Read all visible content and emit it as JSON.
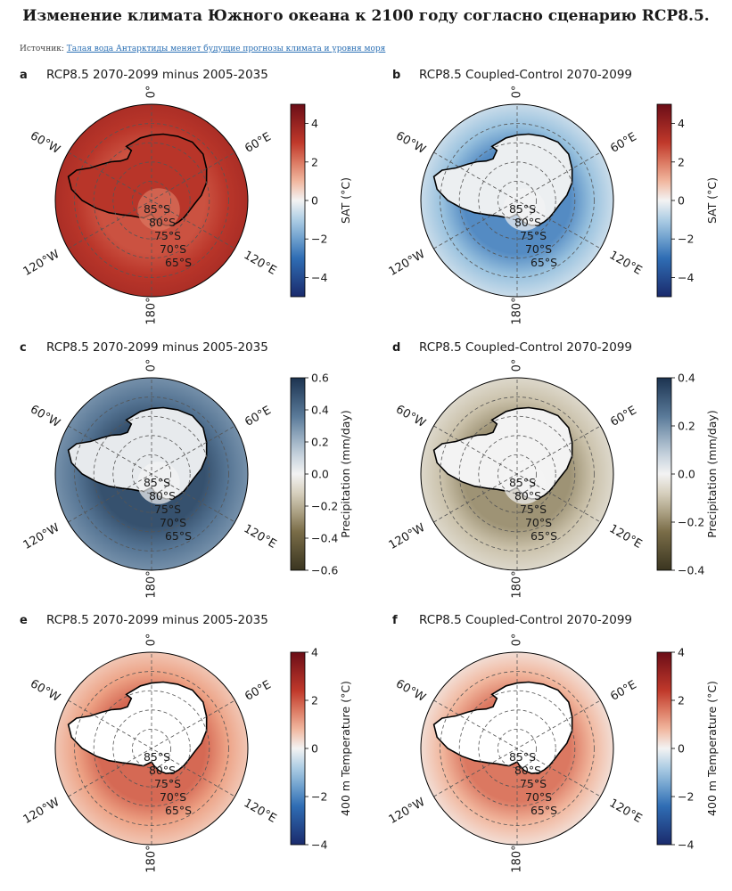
{
  "header": {
    "title": "Изменение климата Южного океана к 2100 году согласно сценарию RCP8.5.",
    "source_label": "Источник:",
    "source_link": "Талая вода Антарктиды меняет будущие прогнозы климата и уровня моря"
  },
  "colors": {
    "warm": "#a8301f",
    "cool": "#2a60a8",
    "neutral": "#f3f3f3",
    "precip_wet": "#2c4a6e",
    "precip_dry": "#4a4128"
  },
  "chart_data": [
    {
      "type": "heatmap",
      "projection": "south-polar-stereographic",
      "panel": "a",
      "title": "RCP8.5 2070-2099 minus 2005-2035",
      "variable": "SAT (°C)",
      "colormap": "RdBu_r",
      "vlim": [
        -5,
        5
      ],
      "colorbar_ticks": [
        "4",
        "2",
        "0",
        "−2",
        "−4"
      ],
      "colorbar_values": [
        4,
        2,
        0,
        -2,
        -4
      ],
      "field": {
        "ocean": 3.5,
        "land": 3.2,
        "interior": 2.0,
        "coast": 2.6
      },
      "lon_labels": [
        "0°",
        "60°E",
        "120°E",
        "180°",
        "120°W",
        "60°W"
      ],
      "lat_labels": [
        "85°S",
        "80°S",
        "75°S",
        "70°S",
        "65°S"
      ]
    },
    {
      "type": "heatmap",
      "projection": "south-polar-stereographic",
      "panel": "b",
      "title": "RCP8.5 Coupled-Control 2070-2099",
      "variable": "SAT (°C)",
      "colormap": "RdBu_r",
      "vlim": [
        -5,
        5
      ],
      "colorbar_ticks": [
        "4",
        "2",
        "0",
        "−2",
        "−4"
      ],
      "colorbar_values": [
        4,
        2,
        0,
        -2,
        -4
      ],
      "field": {
        "ocean": -0.6,
        "land": -0.1,
        "interior": 0.0,
        "coast": -2.4
      },
      "lon_labels": [
        "0°",
        "60°E",
        "120°E",
        "180°",
        "120°W",
        "60°W"
      ],
      "lat_labels": [
        "85°S",
        "80°S",
        "75°S",
        "70°S",
        "65°S"
      ]
    },
    {
      "type": "heatmap",
      "projection": "south-polar-stereographic",
      "panel": "c",
      "title": "RCP8.5 2070-2099 minus 2005-2035",
      "variable": "Precipitation (mm/day)",
      "colormap": "BrBG-like",
      "vlim": [
        -0.6,
        0.6
      ],
      "colorbar_ticks": [
        "0.6",
        "0.4",
        "0.2",
        "0.0",
        "−0.2",
        "−0.4",
        "−0.6"
      ],
      "colorbar_values": [
        0.6,
        0.4,
        0.2,
        0.0,
        -0.2,
        -0.4,
        -0.6
      ],
      "field": {
        "ocean": 0.3,
        "land": 0.03,
        "interior": 0.0,
        "coast": 0.5
      },
      "lon_labels": [
        "0°",
        "60°E",
        "120°E",
        "180°",
        "120°W",
        "60°W"
      ],
      "lat_labels": [
        "85°S",
        "80°S",
        "75°S",
        "70°S",
        "65°S"
      ]
    },
    {
      "type": "heatmap",
      "projection": "south-polar-stereographic",
      "panel": "d",
      "title": "RCP8.5 Coupled-Control 2070-2099",
      "variable": "Precipitation (mm/day)",
      "colormap": "BrBG-like",
      "vlim": [
        -0.4,
        0.4
      ],
      "colorbar_ticks": [
        "0.4",
        "0.2",
        "0.0",
        "−0.2",
        "−0.4"
      ],
      "colorbar_values": [
        0.4,
        0.2,
        0.0,
        -0.2,
        -0.4
      ],
      "field": {
        "ocean": -0.06,
        "land": 0.0,
        "interior": 0.0,
        "coast": -0.18
      },
      "lon_labels": [
        "0°",
        "60°E",
        "120°E",
        "180°",
        "120°W",
        "60°W"
      ],
      "lat_labels": [
        "85°S",
        "80°S",
        "75°S",
        "70°S",
        "65°S"
      ]
    },
    {
      "type": "heatmap",
      "projection": "south-polar-stereographic",
      "panel": "e",
      "title": "RCP8.5 2070-2099 minus 2005-2035",
      "variable": "400 m Temperature (°C)",
      "colormap": "RdBu_r",
      "vlim": [
        -4,
        4
      ],
      "colorbar_ticks": [
        "4",
        "2",
        "0",
        "−2",
        "−4"
      ],
      "colorbar_values": [
        4,
        2,
        0,
        -2,
        -4
      ],
      "field": {
        "ocean": 0.6,
        "land": null,
        "interior": null,
        "coast": 1.8
      },
      "lon_labels": [
        "0°",
        "60°E",
        "120°E",
        "180°",
        "120°W",
        "60°W"
      ],
      "lat_labels": [
        "85°S",
        "80°S",
        "75°S",
        "70°S",
        "65°S"
      ]
    },
    {
      "type": "heatmap",
      "projection": "south-polar-stereographic",
      "panel": "f",
      "title": "RCP8.5 Coupled-Control 2070-2099",
      "variable": "400 m Temperature (°C)",
      "colormap": "RdBu_r",
      "vlim": [
        -4,
        4
      ],
      "colorbar_ticks": [
        "4",
        "2",
        "0",
        "−2",
        "−4"
      ],
      "colorbar_values": [
        4,
        2,
        0,
        -2,
        -4
      ],
      "field": {
        "ocean": 0.3,
        "land": null,
        "interior": null,
        "coast": 1.6
      },
      "lon_labels": [
        "0°",
        "60°E",
        "120°E",
        "180°",
        "120°W",
        "60°W"
      ],
      "lat_labels": [
        "85°S",
        "80°S",
        "75°S",
        "70°S",
        "65°S"
      ]
    }
  ]
}
